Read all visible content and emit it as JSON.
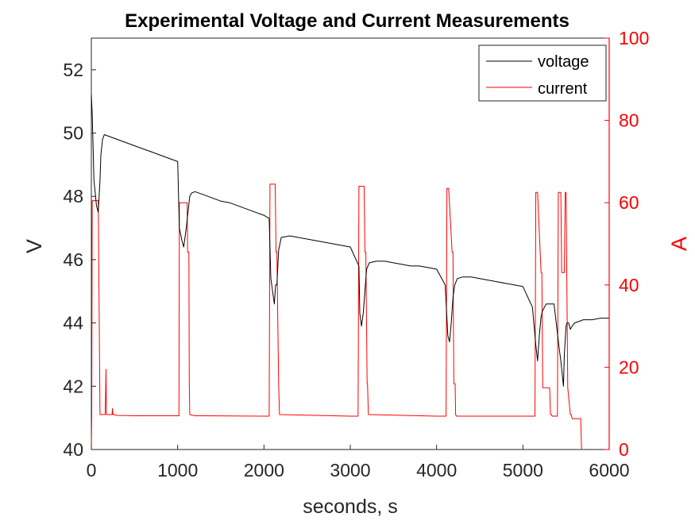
{
  "chart_data": {
    "type": "line",
    "title": "Experimental Voltage and Current Measurements",
    "xlabel": "seconds, s",
    "ylabel": "V",
    "y2label": "A",
    "xlim": [
      0,
      6000
    ],
    "ylim": [
      40,
      53
    ],
    "y2lim": [
      0,
      100
    ],
    "xticks": [
      "0",
      "1000",
      "2000",
      "3000",
      "4000",
      "5000",
      "6000"
    ],
    "yticks": [
      "40",
      "42",
      "44",
      "46",
      "48",
      "50",
      "52"
    ],
    "y2ticks": [
      "0",
      "20",
      "40",
      "60",
      "80",
      "100"
    ],
    "legend_position": "top-right",
    "grid": false,
    "series": [
      {
        "name": "voltage",
        "axis": "left",
        "color": "#000000",
        "x": [
          0,
          10,
          30,
          60,
          80,
          100,
          110,
          130,
          150,
          200,
          300,
          400,
          500,
          600,
          700,
          800,
          900,
          1000,
          1020,
          1050,
          1070,
          1100,
          1140,
          1160,
          1200,
          1300,
          1400,
          1500,
          1600,
          1700,
          1800,
          1900,
          2000,
          2060,
          2080,
          2100,
          2120,
          2135,
          2150,
          2170,
          2200,
          2300,
          2400,
          2500,
          2600,
          2700,
          2800,
          2900,
          3000,
          3100,
          3110,
          3130,
          3150,
          3175,
          3190,
          3220,
          3300,
          3400,
          3500,
          3600,
          3700,
          3800,
          3900,
          4000,
          4100,
          4130,
          4150,
          4170,
          4190,
          4210,
          4240,
          4300,
          4400,
          4500,
          4600,
          4700,
          4800,
          4900,
          5000,
          5110,
          5150,
          5170,
          5190,
          5210,
          5230,
          5250,
          5270,
          5300,
          5330,
          5360,
          5420,
          5440,
          5470,
          5480,
          5500,
          5510,
          5530,
          5550,
          5570,
          5600,
          5650,
          5700,
          5800,
          5900,
          6000
        ],
        "y": [
          51.2,
          50.6,
          48.5,
          47.7,
          47.5,
          48.5,
          49.3,
          49.8,
          49.95,
          49.9,
          49.8,
          49.7,
          49.6,
          49.5,
          49.4,
          49.3,
          49.2,
          49.1,
          47.0,
          46.6,
          46.4,
          47.0,
          48.0,
          48.1,
          48.15,
          48.05,
          47.95,
          47.85,
          47.8,
          47.7,
          47.6,
          47.5,
          47.4,
          47.3,
          45.4,
          45.0,
          44.6,
          45.2,
          45.2,
          46.3,
          46.7,
          46.75,
          46.7,
          46.65,
          46.6,
          46.55,
          46.5,
          46.45,
          46.4,
          45.8,
          44.3,
          43.9,
          44.3,
          45.2,
          45.7,
          45.9,
          45.95,
          45.95,
          45.9,
          45.85,
          45.8,
          45.8,
          45.75,
          45.7,
          45.2,
          43.6,
          43.4,
          44.0,
          44.8,
          45.2,
          45.4,
          45.45,
          45.45,
          45.4,
          45.35,
          45.3,
          45.25,
          45.2,
          45.15,
          44.5,
          43.3,
          42.8,
          43.6,
          44.2,
          44.4,
          44.5,
          44.6,
          44.6,
          44.6,
          44.6,
          43.2,
          42.8,
          42.0,
          43.0,
          43.9,
          44.0,
          44.0,
          43.8,
          43.9,
          44.0,
          44.05,
          44.1,
          44.1,
          44.15,
          44.15
        ]
      },
      {
        "name": "current",
        "axis": "right",
        "color": "#ff0000",
        "x": [
          0,
          5,
          10,
          60,
          80,
          100,
          120,
          140,
          160,
          170,
          175,
          180,
          240,
          245,
          250,
          255,
          300,
          500,
          1000,
          1015,
          1020,
          1100,
          1110,
          1115,
          1120,
          1130,
          1135,
          1140,
          1200,
          2000,
          2050,
          2060,
          2070,
          2120,
          2130,
          2140,
          2150,
          2170,
          2180,
          3000,
          3080,
          3090,
          3100,
          3110,
          3160,
          3170,
          3180,
          3195,
          3200,
          3210,
          4000,
          4110,
          4120,
          4130,
          4140,
          4180,
          4190,
          4200,
          4215,
          4220,
          4230,
          5000,
          5140,
          5150,
          5160,
          5170,
          5210,
          5220,
          5230,
          5240,
          5310,
          5320,
          5330,
          5340,
          5400,
          5410,
          5420,
          5440,
          5450,
          5480,
          5490,
          5500,
          5520,
          5550,
          5560,
          5570,
          5670,
          5680,
          5685
        ],
        "y": [
          0,
          8.5,
          60.5,
          60.5,
          60.5,
          8.5,
          8.5,
          8.5,
          8.5,
          19.5,
          8.5,
          8.5,
          8.5,
          10,
          8.5,
          8.5,
          8.3,
          8.2,
          8.2,
          8.2,
          60,
          60,
          60,
          48,
          48,
          48,
          16,
          8.5,
          8.2,
          8.1,
          8.1,
          8.1,
          64.5,
          64.5,
          64.5,
          48,
          48,
          16,
          8.5,
          8.1,
          8.1,
          8.1,
          64,
          64,
          64,
          48,
          48,
          16,
          16,
          8.5,
          8.1,
          8.1,
          63.5,
          63.5,
          63.5,
          48,
          48,
          16,
          16,
          8.5,
          8.1,
          8.1,
          8.1,
          62.5,
          62.5,
          62.5,
          43,
          43,
          15,
          15,
          15,
          8.5,
          8.5,
          8.1,
          8.1,
          62.5,
          62.5,
          62.5,
          43,
          43,
          62.5,
          62.5,
          15,
          8.5,
          8.5,
          7.5,
          7.5,
          0,
          0
        ]
      }
    ]
  }
}
